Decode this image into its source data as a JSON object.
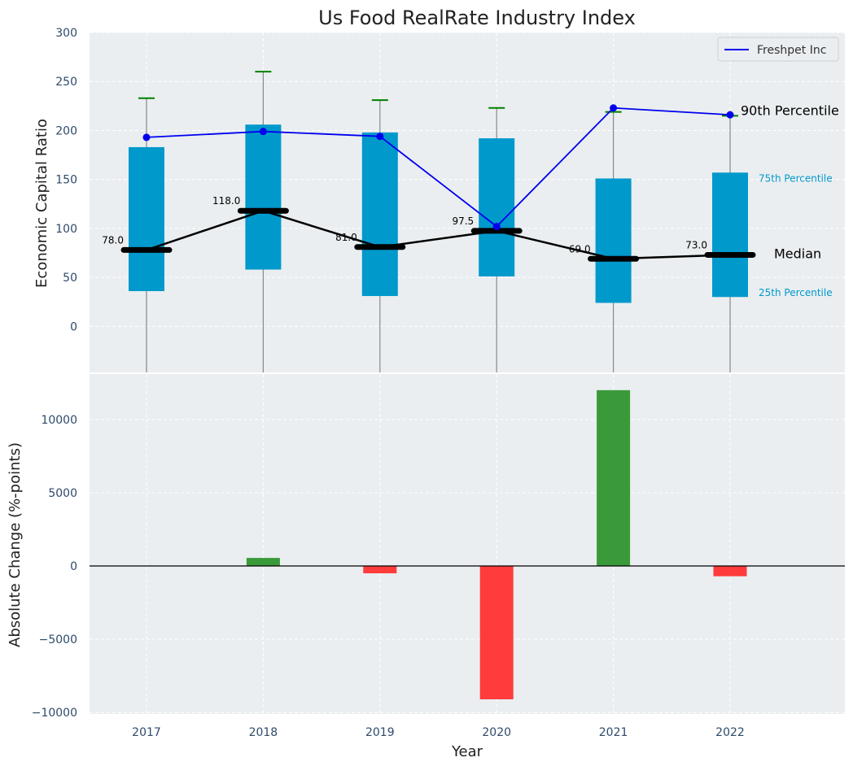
{
  "chart_data": [
    {
      "type": "box",
      "title": "Us Food RealRate Industry Index",
      "xlabel": "",
      "ylabel": "Economic Capital Ratio",
      "ylim": [
        -47,
        300
      ],
      "yticks": [
        "300",
        "250",
        "200",
        "150",
        "100",
        "50",
        "0"
      ],
      "grid": true,
      "legend_position": "top-right",
      "categories": [
        "2017",
        "2018",
        "2019",
        "2020",
        "2021",
        "2022"
      ],
      "boxes": [
        {
          "year": "2017",
          "p25": 36,
          "median": 78.0,
          "p75": 183,
          "p90": 233
        },
        {
          "year": "2018",
          "p25": 58,
          "median": 118.0,
          "p75": 206,
          "p90": 260
        },
        {
          "year": "2019",
          "p25": 31,
          "median": 81.0,
          "p75": 198,
          "p90": 231
        },
        {
          "year": "2020",
          "p25": 51,
          "median": 97.5,
          "p75": 192,
          "p90": 223
        },
        {
          "year": "2021",
          "p25": 24,
          "median": 69.0,
          "p75": 151,
          "p90": 219
        },
        {
          "year": "2022",
          "p25": 30,
          "median": 73.0,
          "p75": 157,
          "p90": 215
        }
      ],
      "median_labels": [
        "78.0",
        "118.0",
        "81.0",
        "97.5",
        "69.0",
        "73.0"
      ],
      "series": [
        {
          "name": "Freshpet Inc",
          "values": [
            193,
            199,
            194,
            102,
            223,
            216
          ],
          "color": "#0000ee"
        }
      ],
      "annotations": {
        "p90": "90th Percentile",
        "p75": "75th Percentile",
        "median": "Median",
        "p25": "25th Percentile"
      },
      "colors": {
        "box": "#0099cc",
        "median": "#000000",
        "whisker_cap": "#008000",
        "background": "#eaeef0"
      }
    },
    {
      "type": "bar",
      "xlabel": "Year",
      "ylabel": "Absolute Change (%-points)",
      "ylim": [
        -10100,
        13100
      ],
      "yticks": [
        "10000",
        "5000",
        "0",
        "−5000",
        "−10000"
      ],
      "grid": true,
      "categories": [
        "2017",
        "2018",
        "2019",
        "2020",
        "2021",
        "2022"
      ],
      "values": [
        0,
        550,
        -500,
        -9100,
        12000,
        -700
      ],
      "colors": {
        "positive": "#3a9a3a",
        "negative": "#ff3b3b"
      }
    }
  ]
}
